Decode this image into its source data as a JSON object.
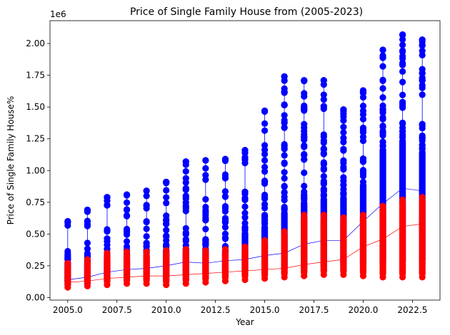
{
  "chart_data": {
    "type": "scatter",
    "title": "Price of Single Family House from (2005-2023)",
    "xlabel": "Year",
    "ylabel": "Price of Single Family House%",
    "y_offset_label": "1e6",
    "xlim": [
      2004.1,
      2023.9
    ],
    "ylim": [
      -0.02,
      2.18
    ],
    "x_ticks": [
      2005.0,
      2007.5,
      2010.0,
      2012.5,
      2015.0,
      2017.5,
      2020.0,
      2022.5
    ],
    "x_tick_labels": [
      "2005.0",
      "2007.5",
      "2010.0",
      "2012.5",
      "2015.0",
      "2017.5",
      "2020.0",
      "2022.5"
    ],
    "y_ticks": [
      0.0,
      0.25,
      0.5,
      0.75,
      1.0,
      1.25,
      1.5,
      1.75,
      2.0
    ],
    "y_tick_labels": [
      "0.00",
      "0.25",
      "0.50",
      "0.75",
      "1.00",
      "1.25",
      "1.50",
      "1.75",
      "2.00"
    ],
    "grid": false,
    "series": [
      {
        "color": "#0000ff",
        "x": [
          2005,
          2006,
          2007,
          2008,
          2009,
          2010,
          2011,
          2012,
          2013,
          2014,
          2015,
          2016,
          2017,
          2018,
          2019,
          2020,
          2021,
          2022,
          2023
        ],
        "min": [
          0.1,
          0.11,
          0.13,
          0.14,
          0.15,
          0.14,
          0.15,
          0.16,
          0.17,
          0.18,
          0.19,
          0.2,
          0.21,
          0.22,
          0.23,
          0.24,
          0.25,
          0.26,
          0.27
        ],
        "max": [
          0.6,
          0.69,
          0.79,
          0.81,
          0.84,
          0.91,
          1.07,
          1.08,
          1.09,
          1.16,
          1.47,
          1.74,
          1.71,
          1.71,
          1.48,
          1.63,
          1.95,
          2.07,
          2.03
        ],
        "mean": [
          0.14,
          0.16,
          0.2,
          0.22,
          0.23,
          0.25,
          0.28,
          0.27,
          0.29,
          0.3,
          0.33,
          0.35,
          0.42,
          0.45,
          0.45,
          0.6,
          0.74,
          0.86,
          0.84
        ],
        "dense_top": [
          0.3,
          0.32,
          0.33,
          0.34,
          0.35,
          0.4,
          0.41,
          0.41,
          0.4,
          0.53,
          0.58,
          0.69,
          0.77,
          0.8,
          0.81,
          0.91,
          1.19,
          1.26,
          1.17
        ]
      },
      {
        "color": "#ff0000",
        "x": [
          2005,
          2006,
          2007,
          2008,
          2009,
          2010,
          2011,
          2012,
          2013,
          2014,
          2015,
          2016,
          2017,
          2018,
          2019,
          2020,
          2021,
          2022,
          2023
        ],
        "min": [
          0.08,
          0.09,
          0.1,
          0.11,
          0.11,
          0.1,
          0.11,
          0.12,
          0.13,
          0.14,
          0.15,
          0.16,
          0.17,
          0.18,
          0.18,
          0.17,
          0.16,
          0.16,
          0.16
        ],
        "max": [
          0.27,
          0.3,
          0.35,
          0.36,
          0.36,
          0.37,
          0.38,
          0.37,
          0.38,
          0.4,
          0.45,
          0.52,
          0.65,
          0.65,
          0.63,
          0.65,
          0.72,
          0.77,
          0.79
        ],
        "mean": [
          0.12,
          0.13,
          0.15,
          0.16,
          0.17,
          0.17,
          0.18,
          0.19,
          0.2,
          0.21,
          0.22,
          0.23,
          0.26,
          0.28,
          0.3,
          0.4,
          0.46,
          0.56,
          0.58
        ]
      }
    ]
  }
}
